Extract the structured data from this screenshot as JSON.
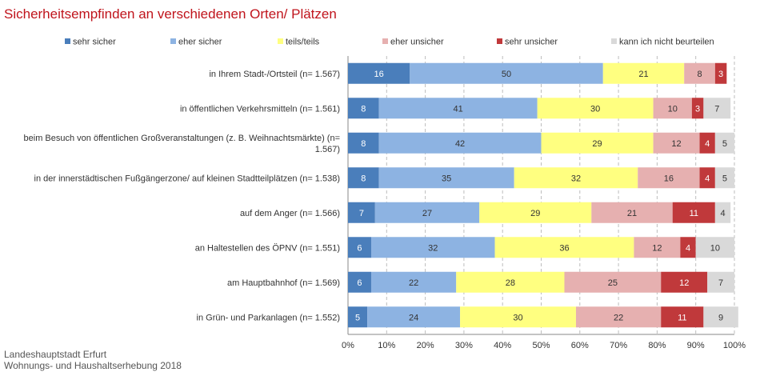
{
  "title": "Sicherheitsempfinden an verschiedenen Orten/ Plätzen",
  "source": [
    "Landeshauptstadt Erfurt",
    "Wohnungs- und Haushaltserhebung 2018"
  ],
  "colors": {
    "title": "#c0141c",
    "sehr_sicher": "#4a7ebb",
    "eher_sicher": "#8db3e2",
    "teils_teils": "#ffff80",
    "eher_unsicher": "#e6b0b0",
    "sehr_unsicher": "#c0393b",
    "nicht_beurteilen": "#d9d9d9"
  },
  "chart_data": {
    "type": "bar",
    "stacked": true,
    "orientation": "horizontal",
    "xlim": [
      0,
      100
    ],
    "x_ticks": [
      "0%",
      "10%",
      "20%",
      "30%",
      "40%",
      "50%",
      "60%",
      "70%",
      "80%",
      "90%",
      "100%"
    ],
    "legend_position": "top",
    "categories": [
      "in Ihrem Stadt-/Ortsteil (n= 1.567)",
      "in öffentlichen Verkehrsmitteln (n= 1.561)",
      "beim Besuch von öffentlichen Großveranstaltungen (z. B. Weihnachtsmärkte) (n= 1.567)",
      "in der innerstädtischen Fußgängerzone/ auf kleinen Stadtteilplätzen (n= 1.538)",
      "auf dem Anger (n= 1.566)",
      "an Haltestellen des ÖPNV (n= 1.551)",
      "am Hauptbahnhof (n= 1.569)",
      "in Grün- und Parkanlagen (n= 1.552)"
    ],
    "category_lines": [
      [
        "in Ihrem Stadt-/Ortsteil (n= 1.567)"
      ],
      [
        "in öffentlichen Verkehrsmitteln (n= 1.561)"
      ],
      [
        "beim Besuch von öffentlichen Großveranstaltungen (z. B. Weihnachtsmärkte) (n=",
        "1.567)"
      ],
      [
        "in der innerstädtischen Fußgängerzone/ auf kleinen Stadtteilplätzen (n= 1.538)"
      ],
      [
        "auf dem Anger (n= 1.566)"
      ],
      [
        "an Haltestellen des ÖPNV (n= 1.551)"
      ],
      [
        "am Hauptbahnhof (n= 1.569)"
      ],
      [
        "in Grün- und Parkanlagen (n= 1.552)"
      ]
    ],
    "series": [
      {
        "name": "sehr sicher",
        "color": "#4a7ebb",
        "label_color": "#ffffff",
        "values": [
          16,
          8,
          8,
          8,
          7,
          6,
          6,
          5
        ]
      },
      {
        "name": "eher sicher",
        "color": "#8db3e2",
        "label_color": "#333333",
        "values": [
          50,
          41,
          42,
          35,
          27,
          32,
          22,
          24
        ]
      },
      {
        "name": "teils/teils",
        "color": "#ffff80",
        "label_color": "#333333",
        "values": [
          21,
          30,
          29,
          32,
          29,
          36,
          28,
          30
        ]
      },
      {
        "name": "eher unsicher",
        "color": "#e6b0b0",
        "label_color": "#333333",
        "values": [
          8,
          10,
          12,
          16,
          21,
          12,
          25,
          22
        ]
      },
      {
        "name": "sehr unsicher",
        "color": "#c0393b",
        "label_color": "#ffffff",
        "values": [
          3,
          3,
          4,
          4,
          11,
          4,
          12,
          11
        ]
      },
      {
        "name": "kann ich nicht beurteilen",
        "color": "#d9d9d9",
        "label_color": "#333333",
        "values": [
          0,
          7,
          5,
          5,
          4,
          10,
          7,
          9
        ]
      }
    ]
  }
}
